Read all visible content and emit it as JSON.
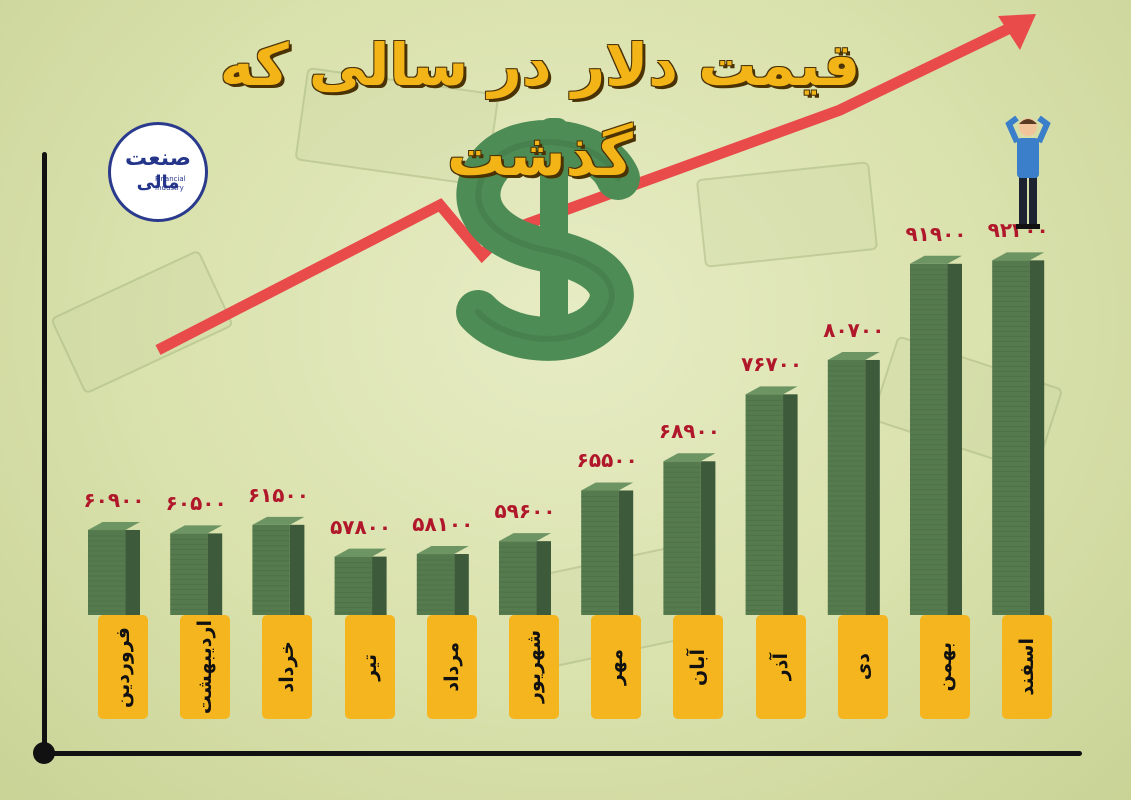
{
  "title": "قیمت دلار در سالی که گذشت",
  "logo": {
    "line1": "صنعت",
    "line2": "مالی",
    "en1": "Financial",
    "en2": "Industry"
  },
  "colors": {
    "bar_dark": "#3d5a3a",
    "bar_mid": "#557a4e",
    "bar_light": "#6d9463",
    "label": "#b0172a",
    "month_tag": "#f4b51e",
    "arrow": "#e94a4a",
    "dollar": "#4e8c55",
    "title": "#f2b417"
  },
  "chart_data": {
    "type": "bar",
    "categories": [
      "فروردین",
      "اردیبهشت",
      "خرداد",
      "تیر",
      "مرداد",
      "شهریور",
      "مهر",
      "آبان",
      "آذر",
      "دی",
      "بهمن",
      "اسفند"
    ],
    "values": [
      60900,
      60500,
      61500,
      57800,
      58100,
      59600,
      65500,
      68900,
      76700,
      80700,
      91900,
      92300
    ],
    "value_labels": [
      "۶۰۹۰۰",
      "۶۰۵۰۰",
      "۶۱۵۰۰",
      "۵۷۸۰۰",
      "۵۸۱۰۰",
      "۵۹۶۰۰",
      "۶۵۵۰۰",
      "۶۸۹۰۰",
      "۷۶۷۰۰",
      "۸۰۷۰۰",
      "۹۱۹۰۰",
      "۹۲۳۰۰"
    ],
    "ylim": [
      51000,
      97000
    ],
    "grid": false,
    "legend": "none"
  }
}
